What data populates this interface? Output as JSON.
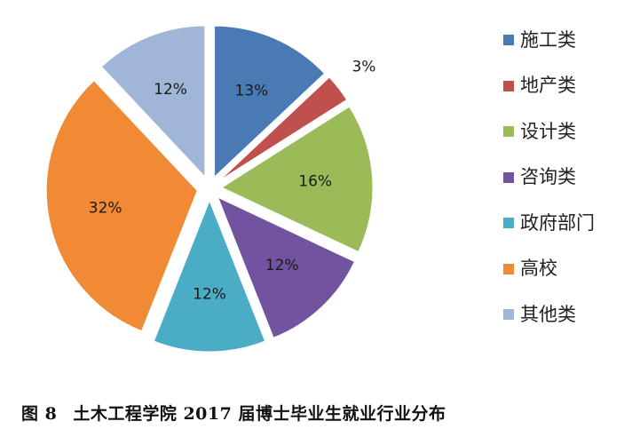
{
  "caption": {
    "figure_number": "图 8",
    "text": "土木工程学院 2017 届博士毕业生就业行业分布"
  },
  "chart_data": {
    "type": "pie",
    "title": "",
    "exploded": true,
    "start_angle_deg": 0,
    "direction": "clockwise",
    "slices": [
      {
        "label": "施工类",
        "value": 13,
        "display": "13%",
        "color": "#4a7ab4"
      },
      {
        "label": "地产类",
        "value": 3,
        "display": "3%",
        "color": "#c0504d"
      },
      {
        "label": "设计类",
        "value": 16,
        "display": "16%",
        "color": "#9bbb59"
      },
      {
        "label": "咨询类",
        "value": 12,
        "display": "12%",
        "color": "#7153a0"
      },
      {
        "label": "政府部门",
        "value": 12,
        "display": "12%",
        "color": "#4bacc6"
      },
      {
        "label": "高校",
        "value": 32,
        "display": "32%",
        "color": "#f08a35"
      },
      {
        "label": "其他类",
        "value": 12,
        "display": "12%",
        "color": "#9fb6d9"
      }
    ],
    "legend_position": "right"
  }
}
